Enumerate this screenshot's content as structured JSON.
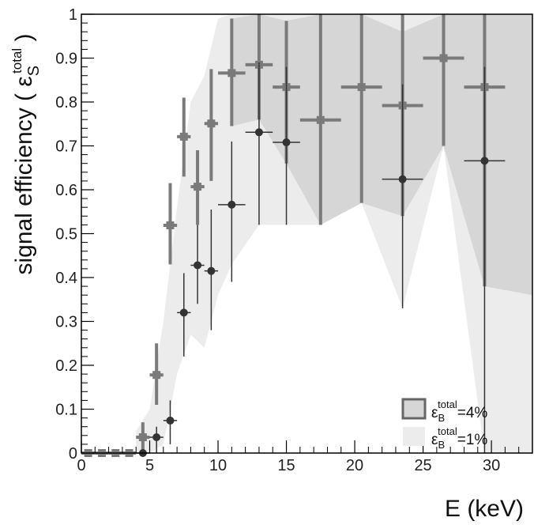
{
  "chart_data": {
    "type": "scatter",
    "ylabel": "signal efficiency ( ε",
    "ylabel_sub": "S",
    "ylabel_sup": "total",
    "ylabel_close": " )",
    "xlabel": "E (keV)",
    "xlim": [
      0,
      33
    ],
    "ylim": [
      0,
      1
    ],
    "x_ticks": [
      0,
      5,
      10,
      15,
      20,
      25,
      30
    ],
    "x_tick_labels": [
      "0",
      "5",
      "10",
      "15",
      "20",
      "25",
      "30"
    ],
    "y_ticks": [
      0,
      0.1,
      0.2,
      0.3,
      0.4,
      0.5,
      0.6,
      0.7,
      0.8,
      0.9,
      1
    ],
    "y_tick_labels": [
      "0",
      "0.1",
      "0.2",
      "0.3",
      "0.4",
      "0.5",
      "0.6",
      "0.7",
      "0.8",
      "0.9",
      "1"
    ],
    "grid": false,
    "legend_position": "bottom-right",
    "series": [
      {
        "name": "=4%",
        "legend_eps": "ε",
        "legend_sub": "B",
        "legend_sup": "total",
        "marker": "square",
        "color": "#7a7a7a",
        "band_color": "#d9d9d9",
        "x": [
          0.5,
          1.5,
          2.5,
          3.5,
          4.5,
          5.5,
          6.5,
          7.5,
          8.5,
          9.5,
          11,
          13,
          15,
          17.5,
          20.5,
          23.5,
          26.5,
          29.5
        ],
        "x_err": [
          0.5,
          0.5,
          0.5,
          0.5,
          0.5,
          0.5,
          0.5,
          0.5,
          0.5,
          0.5,
          1,
          1,
          1,
          1.5,
          1.5,
          1.5,
          1.5,
          1.5
        ],
        "y": [
          0,
          0,
          0,
          0,
          0.036,
          0.178,
          0.519,
          0.721,
          0.607,
          0.751,
          0.866,
          0.885,
          0.834,
          0.759,
          0.834,
          0.792,
          0.9,
          0.834
        ],
        "y_lo": [
          0,
          0,
          0,
          0,
          0,
          0.11,
          0.43,
          0.63,
          0.52,
          0.62,
          0.745,
          0.76,
          0.66,
          0.52,
          0.57,
          0.54,
          0.7,
          0.38
        ],
        "y_hi": [
          0,
          0,
          0,
          0,
          0.07,
          0.25,
          0.615,
          0.81,
          0.69,
          0.875,
          0.99,
          1,
          0.985,
          1,
          1,
          1,
          1,
          1
        ]
      },
      {
        "name": "=1%",
        "legend_eps": "ε",
        "legend_sub": "B",
        "legend_sup": "total",
        "marker": "circle",
        "color": "#333333",
        "band_color": "#ececec",
        "x": [
          4.5,
          5.5,
          6.5,
          7.5,
          8.5,
          9.5,
          11,
          13,
          15,
          23.5,
          29.5
        ],
        "x_err": [
          0.5,
          0.5,
          0.5,
          0.5,
          0.5,
          0.5,
          1,
          1,
          1,
          1.5,
          1.5
        ],
        "y": [
          0,
          0.036,
          0.074,
          0.32,
          0.428,
          0.415,
          0.566,
          0.731,
          0.708,
          0.624,
          0.666
        ],
        "y_lo": [
          0,
          0,
          0.02,
          0.22,
          0.34,
          0.28,
          0.39,
          0.52,
          0.52,
          0.33,
          0.0
        ],
        "y_hi": [
          0,
          0.06,
          0.12,
          0.41,
          0.52,
          0.555,
          0.71,
          0.89,
          0.88,
          0.84,
          0.88
        ]
      }
    ],
    "bands": [
      {
        "series": "=1%",
        "color": "#ececec",
        "x": [
          4,
          5,
          6,
          7,
          8,
          9,
          10,
          11,
          13,
          15,
          17.5,
          20.5,
          23.5,
          26.5,
          29.5,
          33
        ],
        "lo": [
          0,
          0,
          0.02,
          0.18,
          0.27,
          0.24,
          0.36,
          0.43,
          0.52,
          0.52,
          0.52,
          0.57,
          0.33,
          0.7,
          0.0,
          0.0
        ],
        "hi": [
          0.05,
          0.1,
          0.3,
          0.56,
          0.8,
          0.86,
          0.99,
          1,
          1,
          1,
          1,
          1,
          1,
          1,
          1,
          1
        ]
      },
      {
        "series": "=4%",
        "color": "#d6d6d6",
        "x": [
          11,
          13,
          15,
          17.5,
          20.5,
          23.5,
          26.5,
          29.5,
          33
        ],
        "lo": [
          0.745,
          0.76,
          0.66,
          0.52,
          0.57,
          0.54,
          0.7,
          0.38,
          0.36
        ],
        "hi": [
          0.99,
          1,
          0.985,
          1,
          1,
          0.96,
          1,
          1,
          1
        ]
      }
    ]
  }
}
